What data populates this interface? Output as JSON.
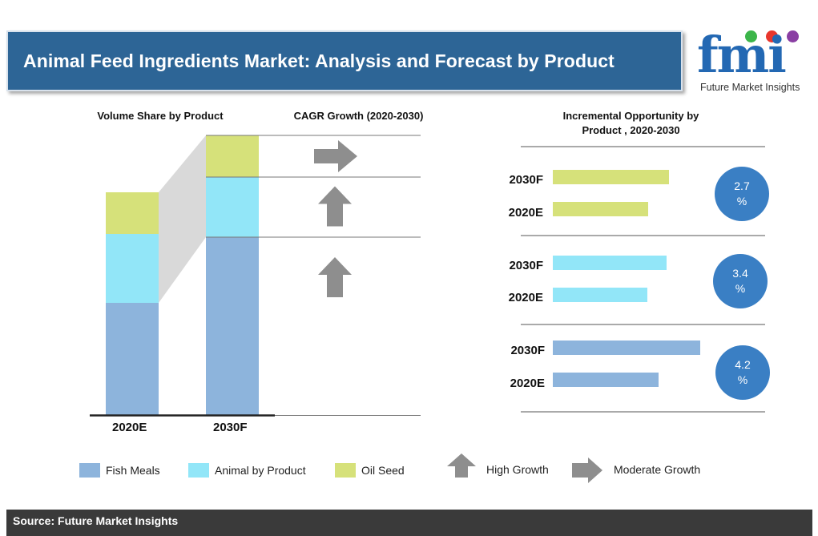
{
  "title": "Animal Feed Ingredients Market: Analysis and Forecast by Product",
  "logo": {
    "mark": "fmi",
    "name": "Future Market Insights",
    "dot_colors": [
      "#3cb54a",
      "#e8362d",
      "#8a3ea3"
    ]
  },
  "colors": {
    "fish_meals": "#8db4dc",
    "animal_by_product": "#92e6f8",
    "oil_seed": "#d6e17a",
    "arrow": "#8e8e8e",
    "circle": "#3a7fc4",
    "banner": "#2d6596"
  },
  "chart_data": [
    {
      "type": "bar",
      "title": "Volume Share by Product",
      "stacked": true,
      "categories": [
        "2020E",
        "2030F"
      ],
      "series": [
        {
          "name": "Fish Meals",
          "values": [
            140,
            222
          ]
        },
        {
          "name": "Animal by Product",
          "values": [
            86,
            75
          ]
        },
        {
          "name": "Oil Seed",
          "values": [
            52,
            52
          ]
        }
      ]
    },
    {
      "type": "table",
      "title": "CAGR Growth (2020-2030)",
      "rows": [
        {
          "product": "Oil Seed",
          "growth": "Moderate Growth"
        },
        {
          "product": "Animal by Product",
          "growth": "High Growth"
        },
        {
          "product": "Fish Meals",
          "growth": "High Growth"
        }
      ]
    },
    {
      "type": "bar",
      "orientation": "horizontal",
      "title": "Incremental Opportunity by Product , 2020-2030",
      "groups": [
        {
          "product": "Oil Seed",
          "cagr": "2.7 %",
          "bars": [
            {
              "label": "2030F",
              "value": 145
            },
            {
              "label": "2020E",
              "value": 119
            }
          ]
        },
        {
          "product": "Animal by Product",
          "cagr": "3.4 %",
          "bars": [
            {
              "label": "2030F",
              "value": 142
            },
            {
              "label": "2020E",
              "value": 118
            }
          ]
        },
        {
          "product": "Fish Meals",
          "cagr": "4.2 %",
          "bars": [
            {
              "label": "2030F",
              "value": 184
            },
            {
              "label": "2020E",
              "value": 132
            }
          ]
        }
      ]
    }
  ],
  "legend": {
    "items": [
      "Fish Meals",
      "Animal by Product",
      "Oil Seed"
    ],
    "arrows": [
      "High Growth",
      "Moderate Growth"
    ]
  },
  "source": "Source: Future Market Insights"
}
